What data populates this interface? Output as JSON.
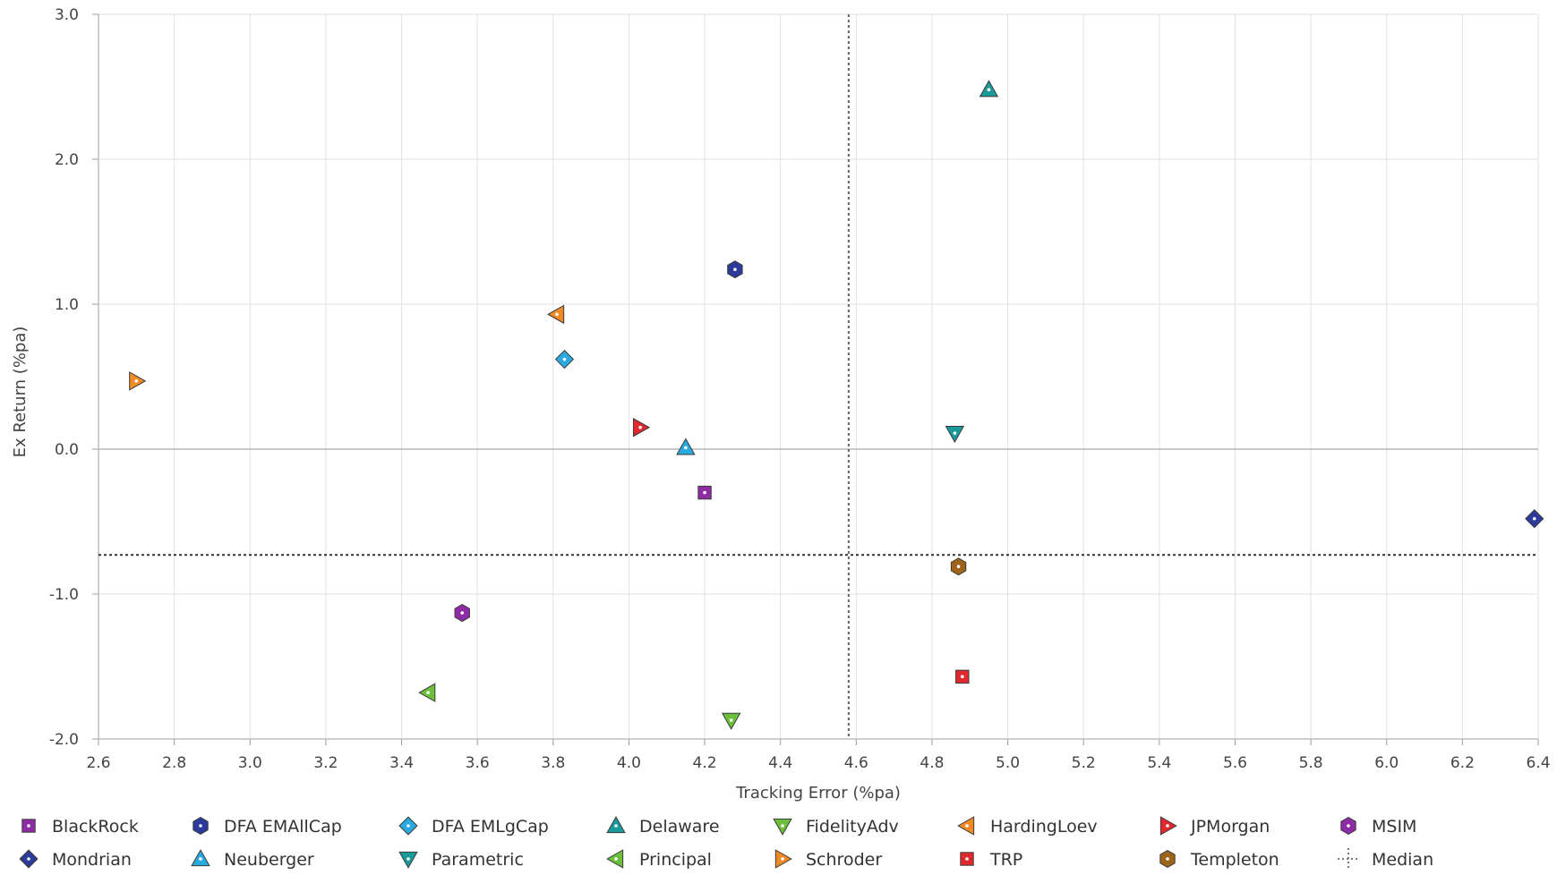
{
  "chart_data": {
    "type": "scatter",
    "xlabel": "Tracking Error (%pa)",
    "ylabel": "Ex Return (%pa)",
    "xlim": [
      2.6,
      6.4
    ],
    "ylim": [
      -2.0,
      3.0
    ],
    "x_ticks": [
      2.6,
      2.8,
      3.0,
      3.2,
      3.4,
      3.6,
      3.8,
      4.0,
      4.2,
      4.4,
      4.6,
      4.8,
      5.0,
      5.2,
      5.4,
      5.6,
      5.8,
      6.0,
      6.2,
      6.4
    ],
    "y_ticks": [
      3.0,
      2.0,
      1.0,
      0.0,
      -1.0,
      -2.0
    ],
    "grid": true,
    "legend_position": "bottom",
    "median": {
      "name": "Median",
      "x": 4.58,
      "y": -0.73
    },
    "series": [
      {
        "name": "BlackRock",
        "marker": "square",
        "color": "#8e2ca5",
        "x": 4.2,
        "y": -0.3
      },
      {
        "name": "DFA EMAllCap",
        "marker": "hexagon",
        "color": "#2d3a9b",
        "x": 4.28,
        "y": 1.24
      },
      {
        "name": "DFA EMLgCap",
        "marker": "diamond",
        "color": "#29abe2",
        "x": 3.83,
        "y": 0.62
      },
      {
        "name": "Delaware",
        "marker": "triangle-up",
        "color": "#1a9a9a",
        "x": 4.95,
        "y": 2.48
      },
      {
        "name": "FidelityAdv",
        "marker": "triangle-down",
        "color": "#6cbf3a",
        "x": 4.27,
        "y": -1.87
      },
      {
        "name": "HardingLoev",
        "marker": "triangle-left",
        "color": "#f08a24",
        "x": 3.81,
        "y": 0.93
      },
      {
        "name": "JPMorgan",
        "marker": "triangle-right",
        "color": "#e0282e",
        "x": 4.03,
        "y": 0.15
      },
      {
        "name": "MSIM",
        "marker": "hexagon",
        "color": "#8e2ca5",
        "x": 3.56,
        "y": -1.13
      },
      {
        "name": "Mondrian",
        "marker": "diamond",
        "color": "#2d3a9b",
        "x": 6.39,
        "y": -0.48
      },
      {
        "name": "Neuberger",
        "marker": "triangle-up",
        "color": "#29abe2",
        "x": 4.15,
        "y": 0.01
      },
      {
        "name": "Parametric",
        "marker": "triangle-down",
        "color": "#1a9a9a",
        "x": 4.86,
        "y": 0.11
      },
      {
        "name": "Principal",
        "marker": "triangle-left",
        "color": "#6cbf3a",
        "x": 3.47,
        "y": -1.68
      },
      {
        "name": "Schroder",
        "marker": "triangle-right",
        "color": "#f08a24",
        "x": 2.7,
        "y": 0.47
      },
      {
        "name": "TRP",
        "marker": "square",
        "color": "#e0282e",
        "x": 4.88,
        "y": -1.57
      },
      {
        "name": "Templeton",
        "marker": "hexagon",
        "color": "#a0631a",
        "x": 4.87,
        "y": -0.81
      }
    ],
    "legend": [
      {
        "name": "BlackRock",
        "marker": "square",
        "color": "#8e2ca5"
      },
      {
        "name": "DFA EMAllCap",
        "marker": "hexagon",
        "color": "#2d3a9b"
      },
      {
        "name": "DFA EMLgCap",
        "marker": "diamond",
        "color": "#29abe2"
      },
      {
        "name": "Delaware",
        "marker": "triangle-up",
        "color": "#1a9a9a"
      },
      {
        "name": "FidelityAdv",
        "marker": "triangle-down",
        "color": "#6cbf3a"
      },
      {
        "name": "HardingLoev",
        "marker": "triangle-left",
        "color": "#f08a24"
      },
      {
        "name": "JPMorgan",
        "marker": "triangle-right",
        "color": "#e0282e"
      },
      {
        "name": "MSIM",
        "marker": "hexagon",
        "color": "#8e2ca5"
      },
      {
        "name": "Mondrian",
        "marker": "diamond",
        "color": "#2d3a9b"
      },
      {
        "name": "Neuberger",
        "marker": "triangle-up",
        "color": "#29abe2"
      },
      {
        "name": "Parametric",
        "marker": "triangle-down",
        "color": "#1a9a9a"
      },
      {
        "name": "Principal",
        "marker": "triangle-left",
        "color": "#6cbf3a"
      },
      {
        "name": "Schroder",
        "marker": "triangle-right",
        "color": "#f08a24"
      },
      {
        "name": "TRP",
        "marker": "square",
        "color": "#e0282e"
      },
      {
        "name": "Templeton",
        "marker": "hexagon",
        "color": "#a0631a"
      },
      {
        "name": "Median",
        "marker": "median",
        "color": "#666666"
      }
    ]
  }
}
